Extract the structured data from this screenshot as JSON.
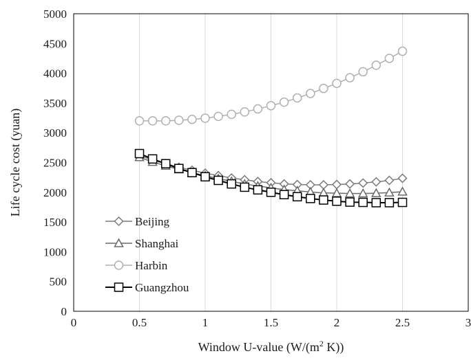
{
  "chart_data": {
    "type": "line",
    "title": "",
    "xlabel": "Window U-value (W/(m",
    "xlabel_sup": "2",
    "xlabel_tail": " K))",
    "ylabel": "Life cycle cost (yuan)",
    "xlim": [
      0,
      3
    ],
    "ylim": [
      0,
      5000
    ],
    "x_ticks": [
      "0",
      "0.5",
      "1",
      "1.5",
      "2",
      "2.5",
      "3"
    ],
    "y_ticks": [
      "0",
      "500",
      "1000",
      "1500",
      "2000",
      "2500",
      "3000",
      "3500",
      "4000",
      "4500",
      "5000"
    ],
    "grid": "vertical",
    "legend_position": "bottom-left",
    "x": [
      0.5,
      0.6,
      0.7,
      0.8,
      0.9,
      1.0,
      1.1,
      1.2,
      1.3,
      1.4,
      1.5,
      1.6,
      1.7,
      1.8,
      1.9,
      2.0,
      2.1,
      2.2,
      2.3,
      2.4,
      2.5
    ],
    "series": [
      {
        "name": "Beijing",
        "marker": "diamond",
        "color": "#7a7a7a",
        "values": [
          2620,
          2540,
          2480,
          2420,
          2370,
          2320,
          2280,
          2240,
          2210,
          2180,
          2160,
          2140,
          2130,
          2125,
          2125,
          2130,
          2140,
          2155,
          2175,
          2200,
          2235
        ]
      },
      {
        "name": "Shanghai",
        "marker": "triangle",
        "color": "#6a6a6a",
        "values": [
          2590,
          2510,
          2445,
          2385,
          2330,
          2280,
          2230,
          2185,
          2140,
          2105,
          2075,
          2045,
          2025,
          2005,
          1990,
          1985,
          1980,
          1980,
          1985,
          1995,
          2010
        ]
      },
      {
        "name": "Harbin",
        "marker": "circle",
        "color": "#b0b0b0",
        "values": [
          3200,
          3200,
          3200,
          3210,
          3225,
          3245,
          3275,
          3310,
          3350,
          3400,
          3455,
          3515,
          3585,
          3660,
          3745,
          3830,
          3925,
          4025,
          4135,
          4250,
          4370
        ]
      },
      {
        "name": "Guangzhou",
        "marker": "square",
        "color": "#000000",
        "values": [
          2650,
          2560,
          2480,
          2400,
          2330,
          2260,
          2200,
          2140,
          2085,
          2040,
          2000,
          1960,
          1925,
          1895,
          1870,
          1850,
          1835,
          1830,
          1825,
          1825,
          1830
        ]
      }
    ]
  }
}
